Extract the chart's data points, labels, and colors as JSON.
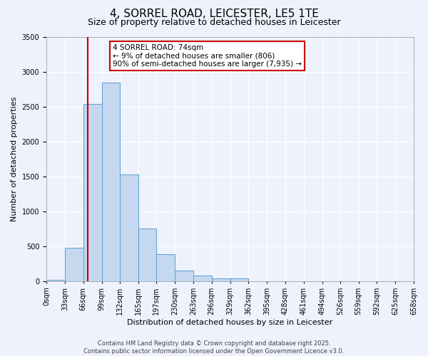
{
  "title": "4, SORREL ROAD, LEICESTER, LE5 1TE",
  "subtitle": "Size of property relative to detached houses in Leicester",
  "xlabel": "Distribution of detached houses by size in Leicester",
  "ylabel": "Number of detached properties",
  "footer_line1": "Contains HM Land Registry data © Crown copyright and database right 2025.",
  "footer_line2": "Contains public sector information licensed under the Open Government Licence v3.0.",
  "bin_labels": [
    "0sqm",
    "33sqm",
    "66sqm",
    "99sqm",
    "132sqm",
    "165sqm",
    "197sqm",
    "230sqm",
    "263sqm",
    "296sqm",
    "329sqm",
    "362sqm",
    "395sqm",
    "428sqm",
    "461sqm",
    "494sqm",
    "526sqm",
    "559sqm",
    "592sqm",
    "625sqm",
    "658sqm"
  ],
  "bar_values": [
    20,
    480,
    2540,
    2840,
    1530,
    750,
    390,
    155,
    80,
    45,
    45,
    0,
    0,
    0,
    0,
    0,
    0,
    0,
    0,
    0
  ],
  "bar_color": "#c5d8f0",
  "bar_edge_color": "#5a9fd4",
  "ylim": [
    0,
    3500
  ],
  "yticks": [
    0,
    500,
    1000,
    1500,
    2000,
    2500,
    3000,
    3500
  ],
  "bin_edges": [
    0,
    33,
    66,
    99,
    132,
    165,
    197,
    230,
    263,
    296,
    329,
    362,
    395,
    428,
    461,
    494,
    526,
    559,
    592,
    625,
    658
  ],
  "property_line_x": 74,
  "annotation_text": "4 SORREL ROAD: 74sqm\n← 9% of detached houses are smaller (806)\n90% of semi-detached houses are larger (7,935) →",
  "annotation_box_facecolor": "#ffffff",
  "annotation_box_edgecolor": "#cc0000",
  "vline_color": "#cc0000",
  "background_color": "#eef2fc",
  "grid_color": "#ffffff",
  "title_fontsize": 11,
  "subtitle_fontsize": 9,
  "xlabel_fontsize": 8,
  "ylabel_fontsize": 8,
  "tick_fontsize": 7,
  "annotation_fontsize": 7.5,
  "footer_fontsize": 6
}
